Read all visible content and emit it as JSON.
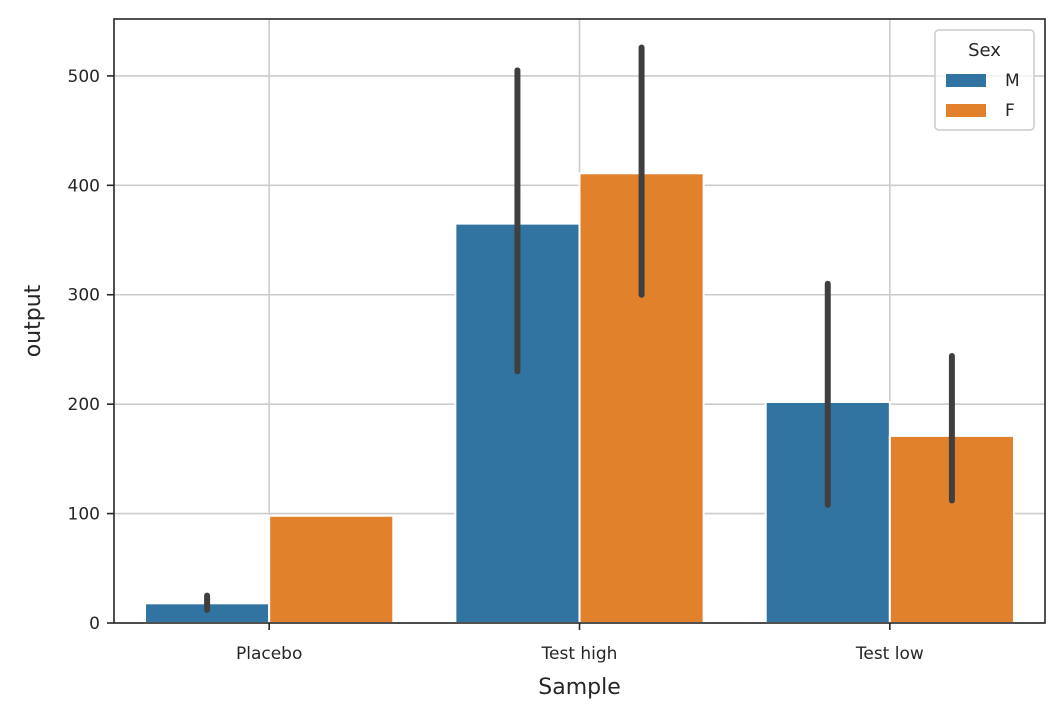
{
  "chart_data": {
    "type": "bar",
    "xlabel": "Sample",
    "ylabel": "output",
    "categories": [
      "Placebo",
      "Test high",
      "Test low"
    ],
    "ylim": [
      0,
      552
    ],
    "yticks": [
      0,
      100,
      200,
      300,
      400,
      500
    ],
    "grid": true,
    "legend": {
      "title": "Sex",
      "placement": "top-right"
    },
    "series": [
      {
        "name": "M",
        "color": "#3274a1",
        "values": [
          18,
          365,
          202
        ],
        "ci": [
          [
            12,
            25
          ],
          [
            230,
            505
          ],
          [
            108,
            310
          ]
        ]
      },
      {
        "name": "F",
        "color": "#e1812c",
        "values": [
          98,
          411,
          171
        ],
        "ci": [
          null,
          [
            300,
            526
          ],
          [
            112,
            244
          ]
        ]
      }
    ],
    "errorbar_color": "#3f3f3f"
  }
}
